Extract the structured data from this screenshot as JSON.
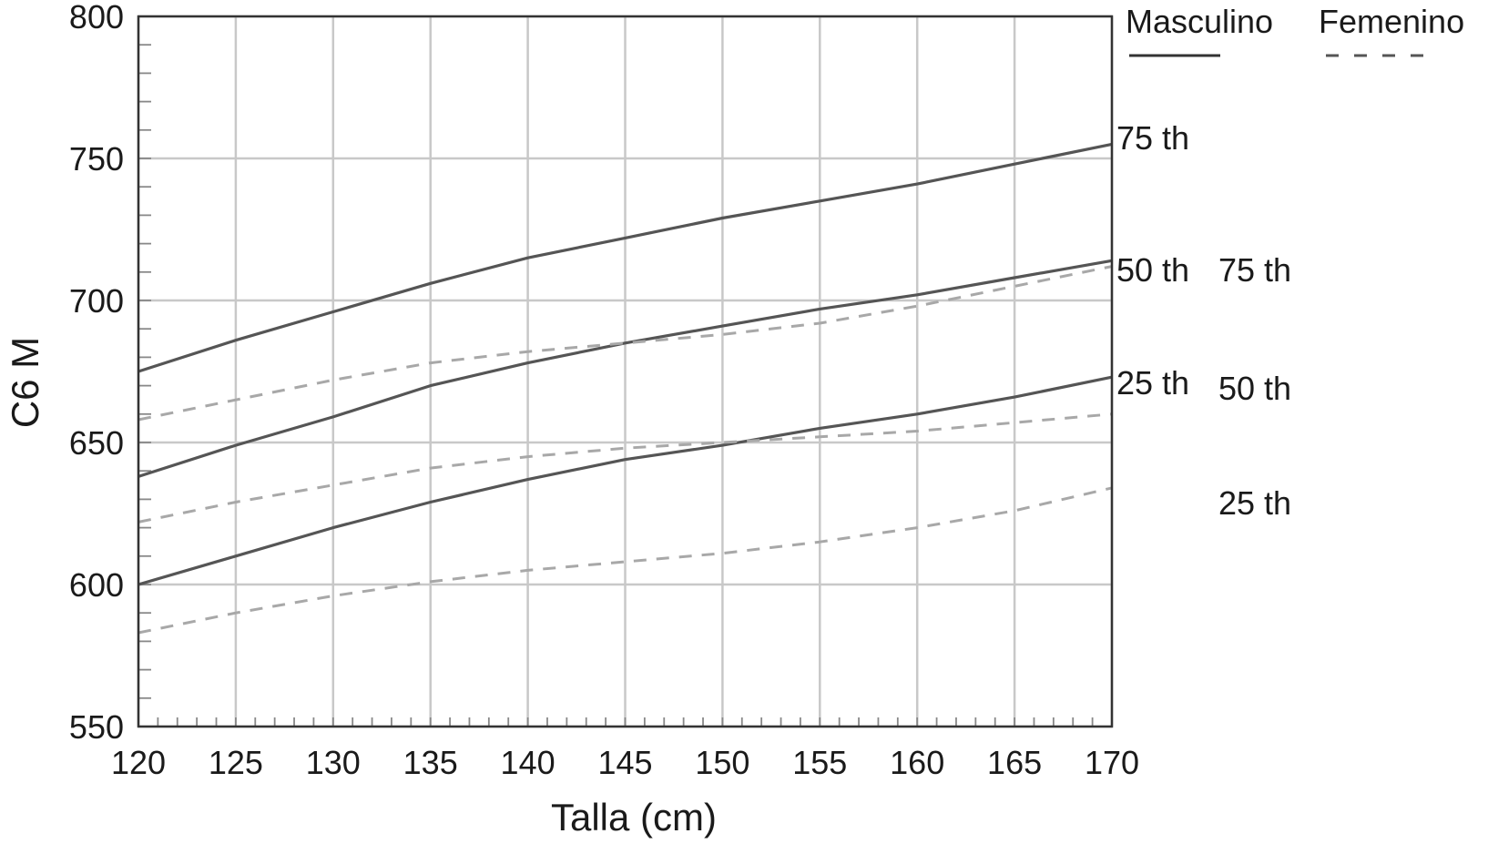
{
  "chart_data": {
    "type": "line",
    "title": "",
    "xlabel": "Talla (cm)",
    "ylabel": "C6 M",
    "xlim": [
      120,
      170
    ],
    "ylim": [
      550,
      800
    ],
    "xticks": [
      120,
      125,
      130,
      135,
      140,
      145,
      150,
      155,
      160,
      165,
      170
    ],
    "yticks": [
      550,
      600,
      650,
      700,
      750,
      800
    ],
    "grid": true,
    "legend": {
      "placement": "top-right",
      "entries": [
        {
          "label": "Masculino",
          "style": "solid"
        },
        {
          "label": "Femenino",
          "style": "dashed"
        }
      ]
    },
    "x": [
      120,
      125,
      130,
      135,
      140,
      145,
      150,
      155,
      160,
      165,
      170
    ],
    "series": [
      {
        "group": "Masculino",
        "percentile": "75 th",
        "style": "solid",
        "color": "#555555",
        "values": [
          675,
          686,
          696,
          706,
          715,
          722,
          729,
          735,
          741,
          748,
          755
        ]
      },
      {
        "group": "Masculino",
        "percentile": "50 th",
        "style": "solid",
        "color": "#555555",
        "values": [
          638,
          649,
          659,
          670,
          678,
          685,
          691,
          697,
          702,
          708,
          714
        ]
      },
      {
        "group": "Masculino",
        "percentile": "25 th",
        "style": "solid",
        "color": "#555555",
        "values": [
          600,
          610,
          620,
          629,
          637,
          644,
          649,
          655,
          660,
          666,
          673
        ]
      },
      {
        "group": "Femenino",
        "percentile": "75 th",
        "style": "dashed",
        "color": "#a8a8a8",
        "values": [
          658,
          665,
          672,
          678,
          682,
          685,
          688,
          692,
          698,
          705,
          712
        ]
      },
      {
        "group": "Femenino",
        "percentile": "50 th",
        "style": "dashed",
        "color": "#a8a8a8",
        "values": [
          622,
          629,
          635,
          641,
          645,
          648,
          650,
          652,
          654,
          657,
          660
        ]
      },
      {
        "group": "Femenino",
        "percentile": "25 th",
        "style": "dashed",
        "color": "#a8a8a8",
        "values": [
          583,
          590,
          596,
          601,
          605,
          608,
          611,
          615,
          620,
          626,
          634
        ]
      }
    ],
    "male_labels": [
      "75 th",
      "50 th",
      "25 th"
    ],
    "female_labels": [
      "75 th",
      "50 th",
      "25 th"
    ]
  }
}
